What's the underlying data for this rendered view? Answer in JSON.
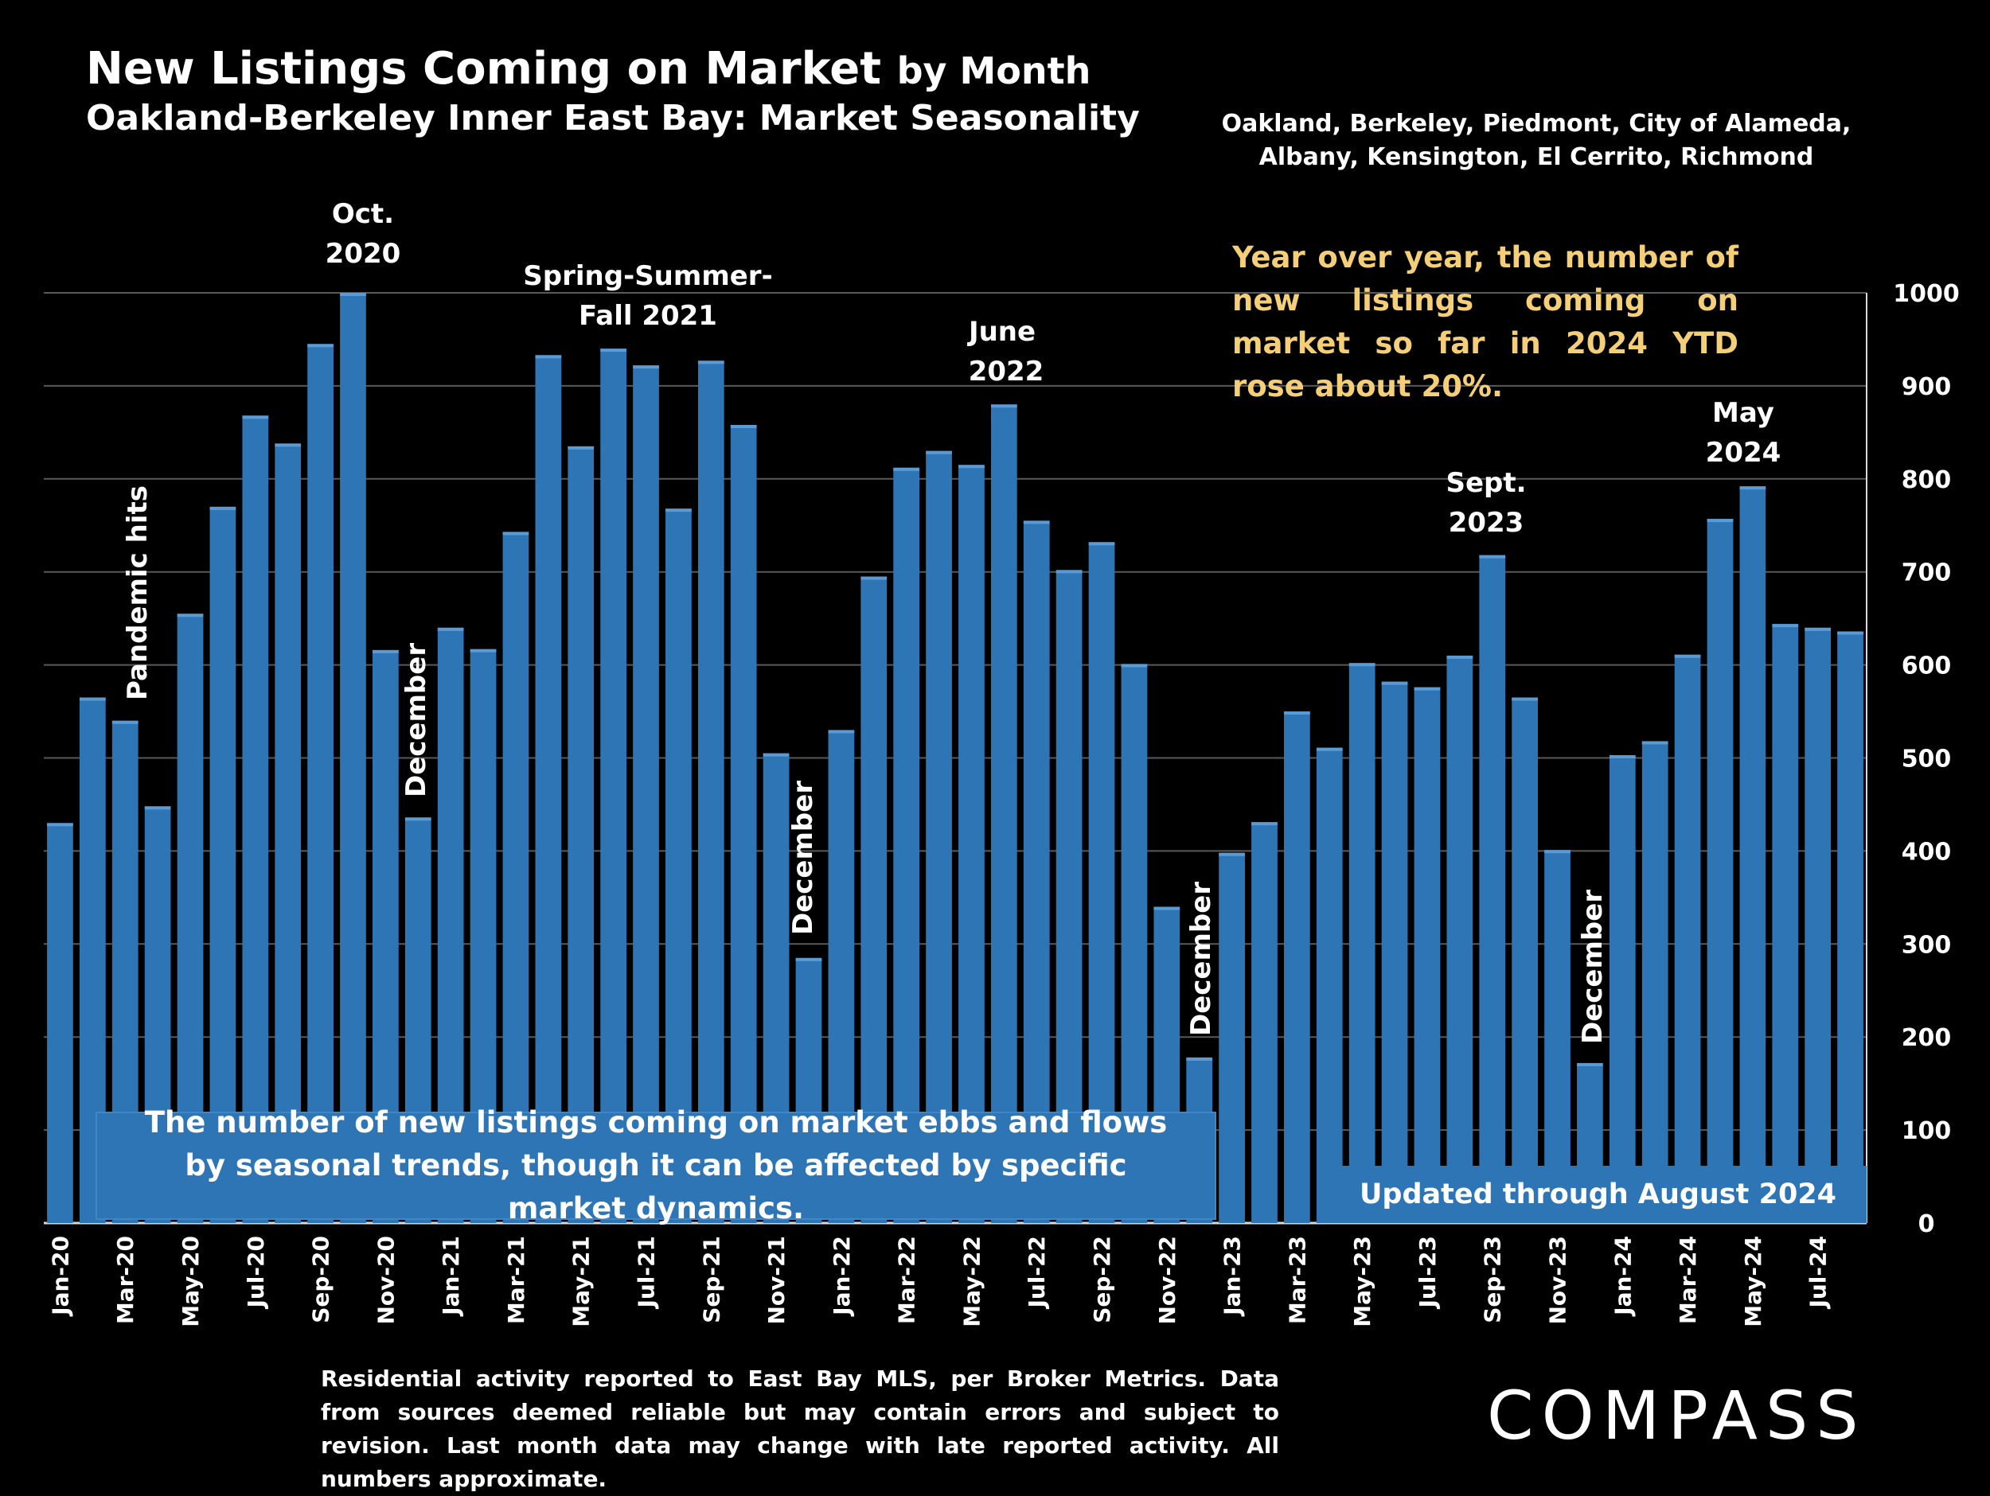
{
  "header": {
    "title_main": "New Listings Coming on Market",
    "title_suffix": "by Month",
    "subtitle": "Oakland-Berkeley Inner East Bay: Market Seasonality",
    "region_line1": "Oakland, Berkeley, Piedmont, City of Alameda,",
    "region_line2": "Albany, Kensington, El Cerrito, Richmond",
    "yoy_note": "Year over year, the number of new listings coming on market so far in 2024 YTD rose about 20%."
  },
  "annotations": {
    "oct2020_line1": "Oct.",
    "oct2020_line2": "2020",
    "spring2021_line1": "Spring-Summer-",
    "spring2021_line2": "Fall  2021",
    "june2022_line1": "June",
    "june2022_line2": "2022",
    "sept2023_line1": "Sept.",
    "sept2023_line2": "2023",
    "may2024_line1": "May",
    "may2024_line2": "2024",
    "pandemic": "Pandemic hits",
    "december": "December"
  },
  "boxes": {
    "left_text": "The number of new listings coming on market ebbs and flows by seasonal trends, though it can be affected by specific market dynamics.",
    "right_text": "Updated through August 2024"
  },
  "footnote": "Residential activity reported to East Bay MLS, per Broker Metrics. Data from sources deemed reliable but may contain errors and subject to revision. Last month data may change with late reported activity. All numbers approximate.",
  "logo": "COMPASS",
  "colors": {
    "bar": "#2e75b6",
    "background": "#000000",
    "grid": "#595959",
    "highlight_text": "#f5cf78"
  },
  "chart_data": {
    "type": "bar",
    "categories": [
      "Jan-20",
      "Feb-20",
      "Mar-20",
      "Apr-20",
      "May-20",
      "Jun-20",
      "Jul-20",
      "Aug-20",
      "Sep-20",
      "Oct-20",
      "Nov-20",
      "Dec-20",
      "Jan-21",
      "Feb-21",
      "Mar-21",
      "Apr-21",
      "May-21",
      "Jun-21",
      "Jul-21",
      "Aug-21",
      "Sep-21",
      "Oct-21",
      "Nov-21",
      "Dec-21",
      "Jan-22",
      "Feb-22",
      "Mar-22",
      "Apr-22",
      "May-22",
      "Jun-22",
      "Jul-22",
      "Aug-22",
      "Sep-22",
      "Oct-22",
      "Nov-22",
      "Dec-22",
      "Jan-23",
      "Feb-23",
      "Mar-23",
      "Apr-23",
      "May-23",
      "Jun-23",
      "Jul-23",
      "Aug-23",
      "Sep-23",
      "Oct-23",
      "Nov-23",
      "Dec-23",
      "Jan-24",
      "Feb-24",
      "Mar-24",
      "Apr-24",
      "May-24",
      "Jun-24",
      "Jul-24",
      "Aug-24"
    ],
    "x_tick_labels": [
      "Jan-20",
      "Mar-20",
      "May-20",
      "Jul-20",
      "Sep-20",
      "Nov-20",
      "Jan-21",
      "Mar-21",
      "May-21",
      "Jul-21",
      "Sep-21",
      "Nov-21",
      "Jan-22",
      "Mar-22",
      "May-22",
      "Jul-22",
      "Sep-22",
      "Nov-22",
      "Jan-23",
      "Mar-23",
      "May-23",
      "Jul-23",
      "Sep-23",
      "Nov-23",
      "Jan-24",
      "Mar-24",
      "May-24",
      "Jul-24"
    ],
    "values": [
      430,
      565,
      540,
      448,
      655,
      770,
      868,
      838,
      945,
      1000,
      616,
      436,
      640,
      617,
      743,
      933,
      835,
      940,
      922,
      768,
      927,
      858,
      505,
      285,
      530,
      695,
      812,
      830,
      815,
      880,
      755,
      702,
      732,
      601,
      340,
      178,
      398,
      431,
      550,
      511,
      602,
      582,
      576,
      610,
      718,
      565,
      401,
      172,
      503,
      518,
      611,
      757,
      792,
      644,
      640,
      636
    ],
    "ylim": [
      0,
      1000
    ],
    "y_ticks": [
      0,
      100,
      200,
      300,
      400,
      500,
      600,
      700,
      800,
      900,
      1000
    ],
    "y_axis_position": "right",
    "grid": true
  }
}
